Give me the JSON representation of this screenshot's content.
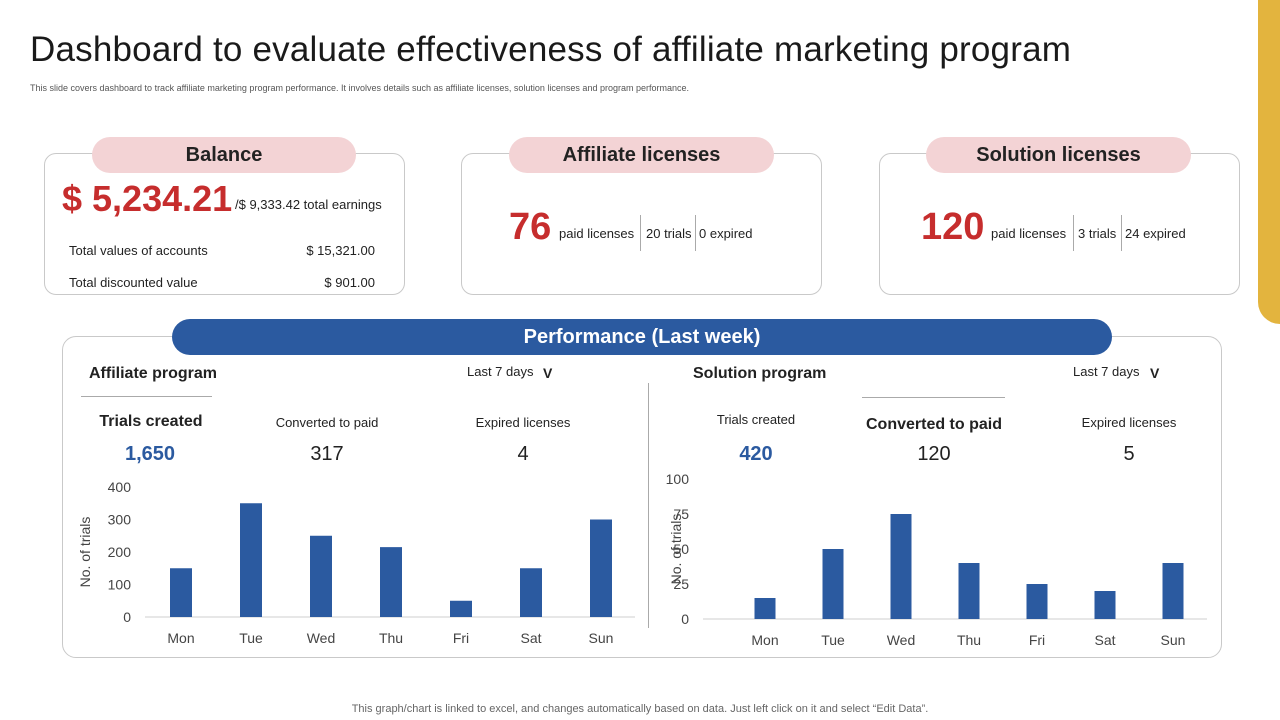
{
  "page": {
    "title": "Dashboard to evaluate effectiveness of affiliate marketing program",
    "subtitle": "This slide covers dashboard to track affiliate marketing program performance. It involves details such as affiliate licenses, solution licenses and program performance.",
    "footer": "This graph/chart is linked to excel,  and changes automatically based on data. Just left click on it and select “Edit Data”.",
    "accent_color": "#e3b43e",
    "brand_blue": "#2b5aa0",
    "highlight_red": "#c62d2d"
  },
  "balance": {
    "label": "Balance",
    "amount": "$ 5,234.21",
    "total_earnings": "/$ 9,333.42  total earnings",
    "rows": [
      {
        "label": "Total values  of accounts",
        "value": "$ 15,321.00"
      },
      {
        "label": "Total discounted value",
        "value": "$ 901.00"
      }
    ]
  },
  "affiliate_licenses": {
    "label": "Affiliate licenses",
    "count": "76",
    "paid_text": "paid licenses",
    "trials": "20 trials",
    "expired": "0 expired"
  },
  "solution_licenses": {
    "label": "Solution licenses",
    "count": "120",
    "paid_text": "paid licenses",
    "trials": "3 trials",
    "expired": "24 expired"
  },
  "performance": {
    "title": "Performance (Last week)",
    "affiliate": {
      "title": "Affiliate program",
      "range": "Last 7 days",
      "chevron": "V",
      "stats": [
        {
          "label": "Trials created",
          "value": "1,650"
        },
        {
          "label": "Converted  to paid",
          "value": "317"
        },
        {
          "label": "Expired licenses",
          "value": "4"
        }
      ]
    },
    "solution": {
      "title": "Solution program",
      "range": "Last 7 days",
      "chevron": "V",
      "stats": [
        {
          "label": "Trials created",
          "value": "420"
        },
        {
          "label": "Converted to paid",
          "value": "120"
        },
        {
          "label": "Expired licenses",
          "value": "5"
        }
      ]
    }
  },
  "chart_data": [
    {
      "type": "bar",
      "title": "Affiliate program",
      "categories": [
        "Mon",
        "Tue",
        "Wed",
        "Thu",
        "Fri",
        "Sat",
        "Sun"
      ],
      "values": [
        150,
        350,
        250,
        215,
        50,
        150,
        300
      ],
      "ylabel": "No. of trials",
      "xlabel": "",
      "ylim": [
        0,
        400
      ],
      "yticks": [
        0,
        100,
        200,
        300,
        400
      ],
      "color": "#2b5aa0",
      "grid": false
    },
    {
      "type": "bar",
      "title": "Solution program",
      "categories": [
        "Mon",
        "Tue",
        "Wed",
        "Thu",
        "Fri",
        "Sat",
        "Sun"
      ],
      "values": [
        15,
        50,
        75,
        40,
        25,
        20,
        40
      ],
      "ylabel": "No. of trials",
      "xlabel": "",
      "ylim": [
        0,
        100
      ],
      "yticks": [
        0,
        25,
        50,
        75,
        100
      ],
      "color": "#2b5aa0",
      "grid": false
    }
  ]
}
